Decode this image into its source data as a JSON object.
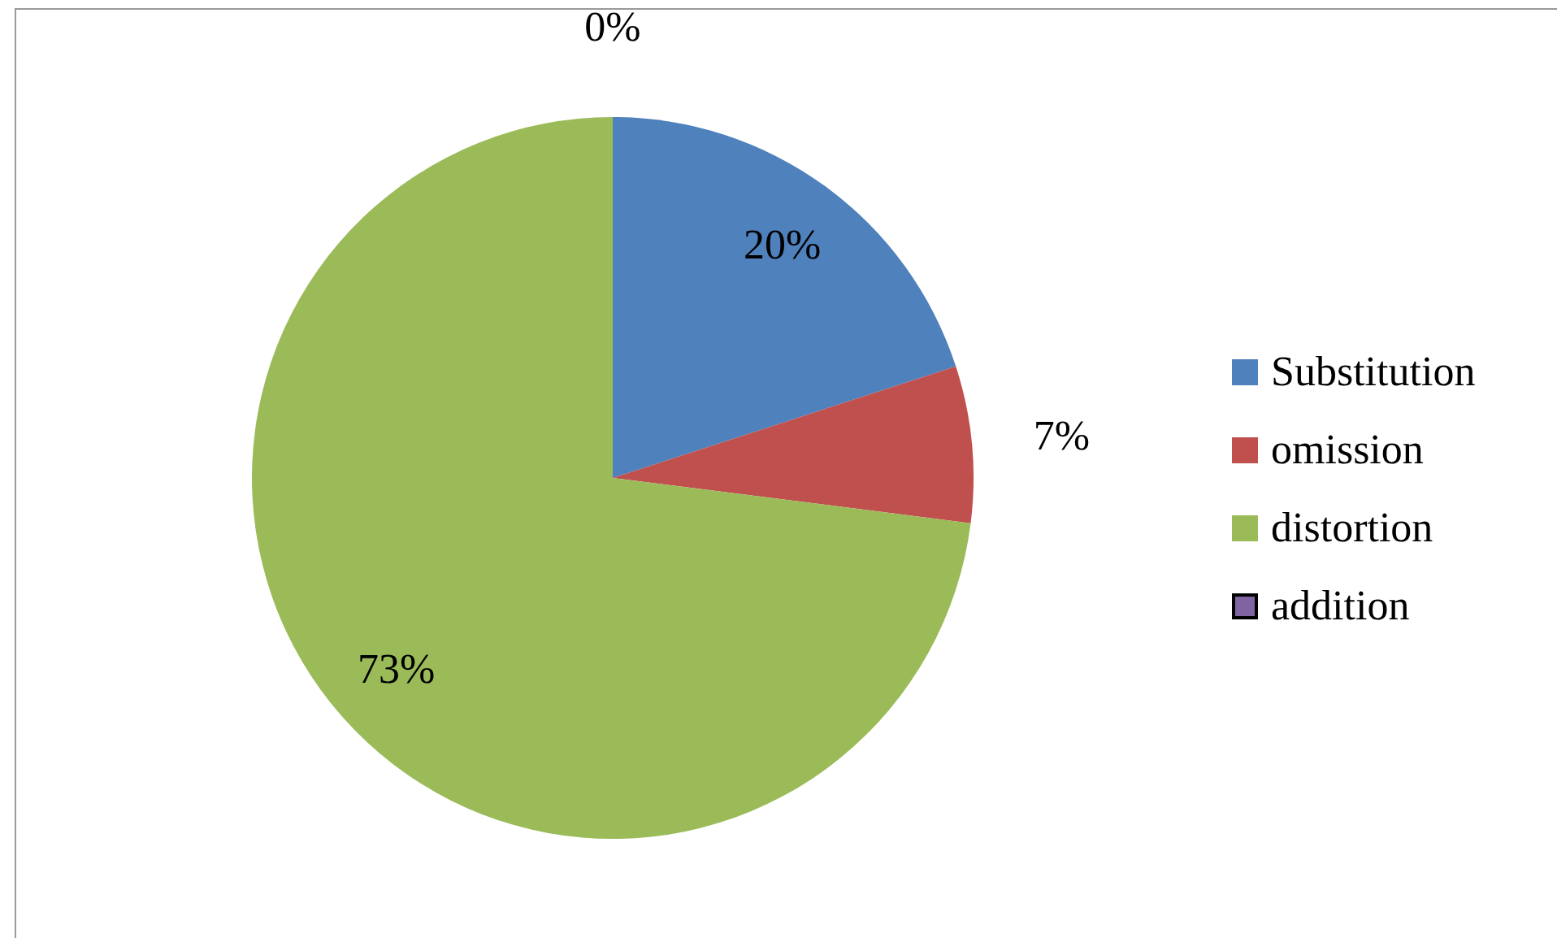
{
  "chart_data": {
    "type": "pie",
    "categories": [
      "Substitution",
      "omission",
      "distortion",
      "addition"
    ],
    "values": [
      20,
      7,
      73,
      0
    ],
    "colors": [
      "#4f81bd",
      "#c0504d",
      "#9bbb59",
      "#8064a2"
    ],
    "value_labels": [
      "20%",
      "7%",
      "73%",
      "0%"
    ],
    "legend": "right"
  }
}
